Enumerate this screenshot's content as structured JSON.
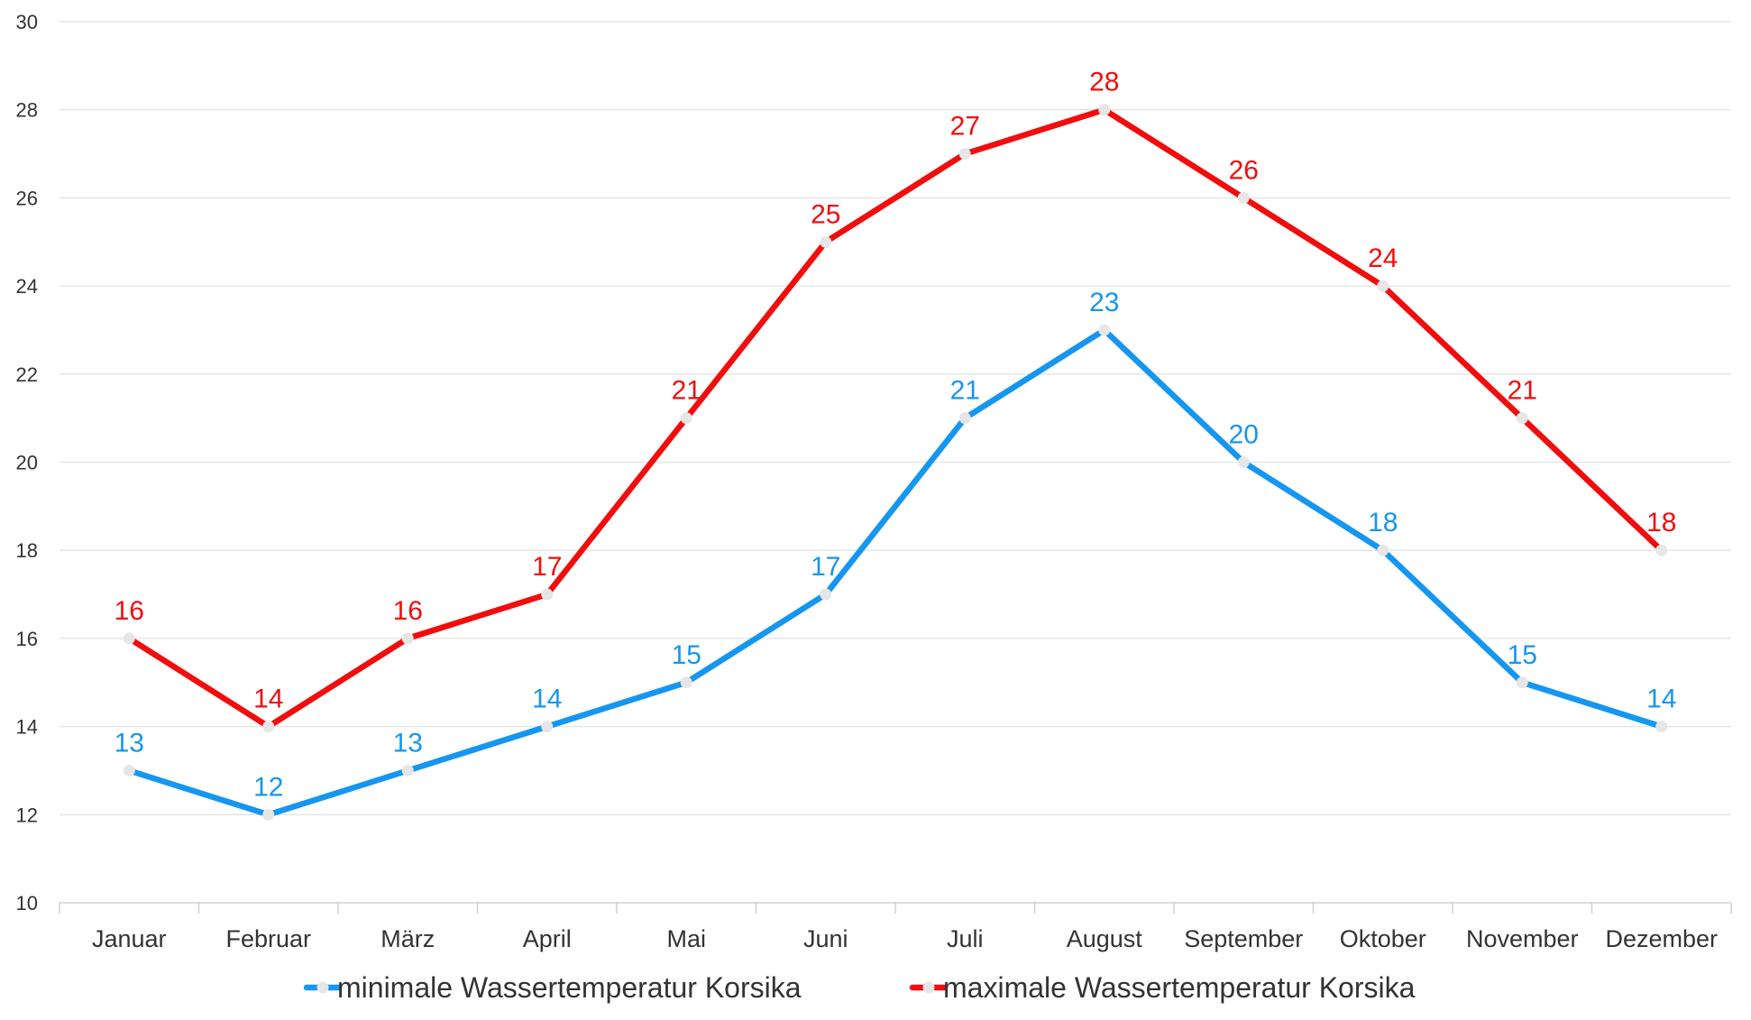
{
  "chart_data": {
    "type": "line",
    "categories": [
      "Januar",
      "Februar",
      "März",
      "April",
      "Mai",
      "Juni",
      "Juli",
      "August",
      "September",
      "Oktober",
      "November",
      "Dezember"
    ],
    "series": [
      {
        "name": "minimale Wassertemperatur Korsika",
        "color": "#1596f0",
        "values": [
          13,
          12,
          13,
          14,
          15,
          17,
          21,
          23,
          20,
          18,
          15,
          14
        ]
      },
      {
        "name": "maximale Wassertemperatur Korsika",
        "color": "#f20d0d",
        "values": [
          16,
          14,
          16,
          17,
          21,
          25,
          27,
          28,
          26,
          24,
          21,
          18
        ]
      }
    ],
    "ylim": [
      10,
      30
    ],
    "yticks": [
      "10",
      "12",
      "14",
      "16",
      "18",
      "20",
      "22",
      "24",
      "26",
      "28",
      "30"
    ],
    "grid": true,
    "legend_position": "bottom",
    "data_labels": true,
    "marker_color": "#e6e6e6",
    "grid_color": "#e3e3e3",
    "axis_color": "#d0d0d0",
    "text_color": "#333333"
  }
}
